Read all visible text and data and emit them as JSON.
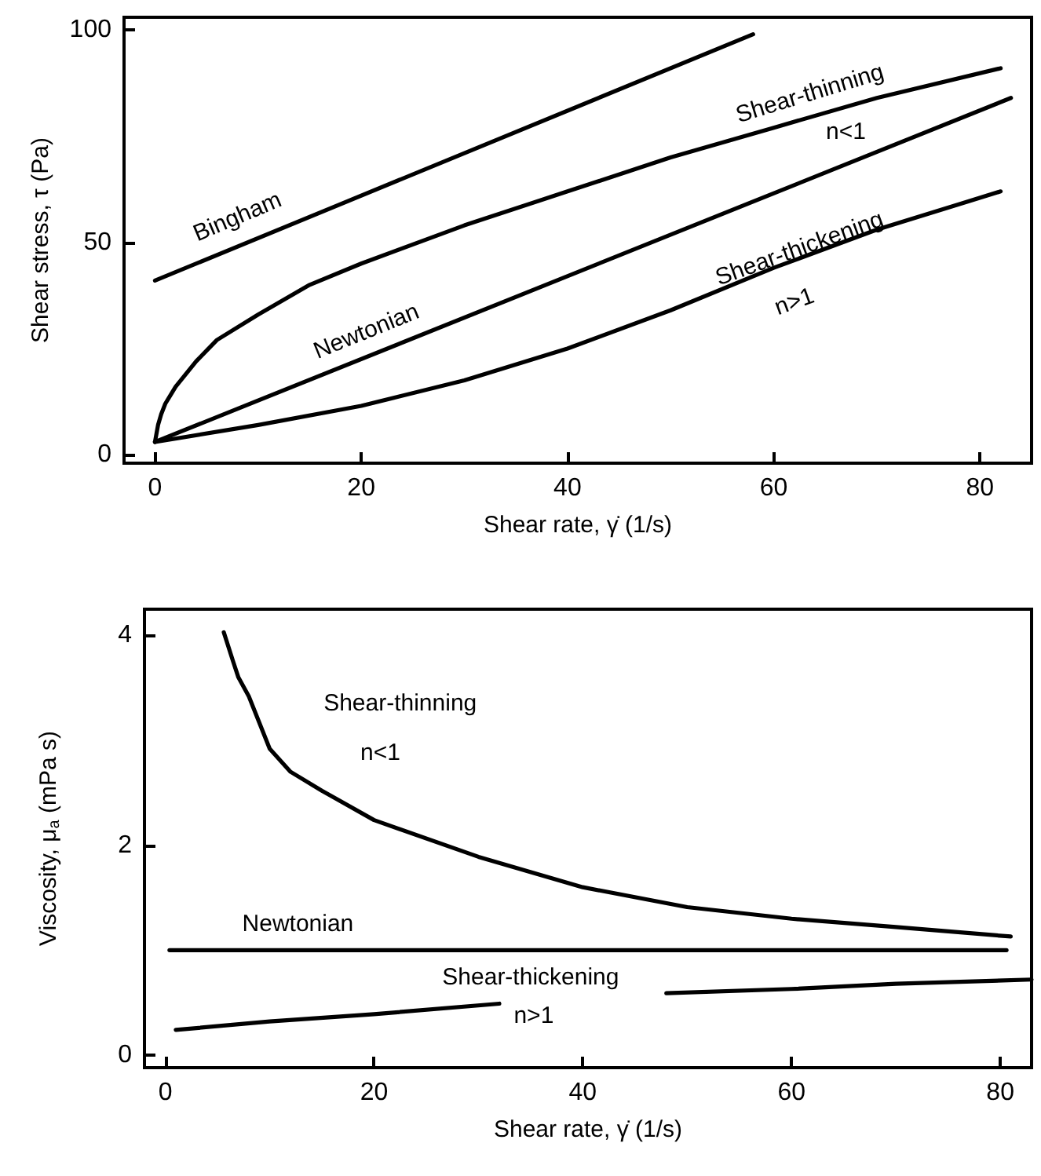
{
  "chart_data": [
    {
      "type": "line",
      "xlabel": "Shear rate, γ̇ (1/s)",
      "ylabel": "Shear stress, τ (Pa)",
      "xlim": [
        -3,
        85
      ],
      "ylim": [
        -2,
        103
      ],
      "xticks": [
        0,
        20,
        40,
        60,
        80
      ],
      "yticks": [
        0,
        50,
        100
      ],
      "grid": false,
      "marker": "none",
      "line_style": "solid",
      "series": [
        {
          "color": "#000000",
          "x": [
            0,
            58
          ],
          "values": [
            41,
            99
          ]
        },
        {
          "color": "#000000",
          "x": [
            0,
            0.3,
            0.6,
            1,
            2,
            4,
            6,
            10,
            15,
            20,
            30,
            40,
            50,
            60,
            70,
            82
          ],
          "values": [
            3,
            7,
            9.5,
            12,
            16,
            22,
            27,
            33,
            40,
            45,
            54,
            62,
            70,
            77,
            84,
            91
          ]
        },
        {
          "color": "#000000",
          "x": [
            0,
            83
          ],
          "values": [
            3,
            84
          ]
        },
        {
          "color": "#000000",
          "x": [
            0,
            10,
            20,
            30,
            40,
            50,
            60,
            70,
            82
          ],
          "values": [
            3,
            7,
            11.5,
            17.5,
            25,
            34,
            44,
            53,
            62
          ]
        }
      ],
      "annotations": [
        "Bingham",
        "Shear-thinning",
        "n<1",
        "Newtonian",
        "Shear-thickening",
        "n>1"
      ]
    },
    {
      "type": "line",
      "xlabel": "Shear rate, γ̇ (1/s)",
      "ylabel": "Viscosity, μ$_{a}$ (mPa s)",
      "xlim": [
        -2,
        83
      ],
      "ylim": [
        -0.12,
        4.25
      ],
      "xticks": [
        0,
        20,
        40,
        60,
        80
      ],
      "yticks": [
        0,
        2,
        4
      ],
      "grid": false,
      "marker": "none",
      "line_style": "solid",
      "series": [
        {
          "color": "#000000",
          "x": [
            5.6,
            6.5,
            7,
            8,
            10,
            12,
            15,
            20,
            30,
            40,
            50,
            60,
            70,
            81
          ],
          "values": [
            4.03,
            3.75,
            3.6,
            3.42,
            2.92,
            2.7,
            2.52,
            2.24,
            1.89,
            1.6,
            1.41,
            1.3,
            1.22,
            1.13
          ]
        },
        {
          "color": "#000000",
          "x": [
            0.4,
            80.6
          ],
          "values": [
            1,
            1
          ]
        },
        {
          "color": "#000000",
          "x": [
            1,
            10,
            20,
            32,
            40,
            48,
            60,
            70,
            83
          ],
          "values": [
            0.24,
            0.32,
            0.39,
            0.49,
            null,
            0.59,
            0.63,
            0.68,
            0.72
          ]
        }
      ],
      "annotations": [
        "Shear-thinning",
        "n<1",
        "Newtonian",
        "Shear-thickening",
        "n>1"
      ]
    }
  ]
}
